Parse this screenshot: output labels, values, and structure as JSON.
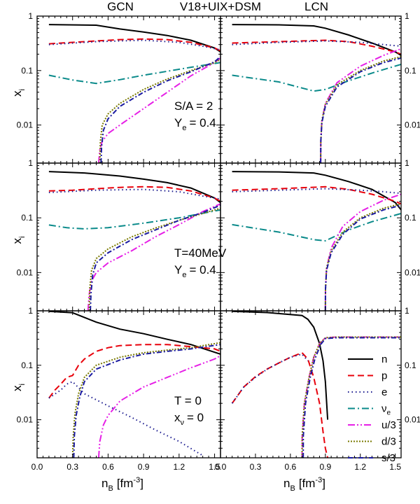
{
  "figure": {
    "header": {
      "left": "GCN",
      "center": "V18+UIX+DSM",
      "right": "LCN"
    },
    "y_label": "x",
    "y_label_sub": "i",
    "x_label": "n",
    "x_label_sub": "B",
    "x_label_unit": "[fm",
    "x_label_exp": "-3",
    "x_label_close": "]"
  },
  "legend": [
    {
      "label": "n",
      "color": "#000000",
      "dash": ""
    },
    {
      "label": "p",
      "color": "#e8000b",
      "dash": "9,5"
    },
    {
      "label": "e",
      "color": "#1b1b8f",
      "dash": "1.5,4"
    },
    {
      "label": "ν",
      "sub": "e",
      "color": "#0a8a8a",
      "dash": "10,4,2,4"
    },
    {
      "label": "u/3",
      "color": "#e620e6",
      "dash": "10,3,2,3,2,3"
    },
    {
      "label": "d/3",
      "color": "#7a7a00",
      "dash": "2,2"
    },
    {
      "label": "s/3",
      "color": "#1a1aa0",
      "dash": "7,3,2,3"
    }
  ],
  "chart_data": [
    {
      "type": "line",
      "panel": "S/A=2 GCN",
      "annotation": [
        "S/A = 2",
        "Y",
        "e",
        "= 0.4"
      ],
      "xlim": [
        0,
        1.55
      ],
      "ylim_log": [
        0.002,
        1
      ],
      "y_ticks": [
        "1",
        "0.1",
        "0.01"
      ],
      "x_ticks": [],
      "series": [
        {
          "name": "n",
          "x": [
            0.1,
            0.5,
            0.7,
            0.9,
            1.1,
            1.3,
            1.5,
            1.55
          ],
          "y": [
            0.7,
            0.68,
            0.58,
            0.51,
            0.44,
            0.36,
            0.26,
            0.22
          ]
        },
        {
          "name": "p",
          "x": [
            0.1,
            0.3,
            0.5,
            0.7,
            0.9,
            1.1,
            1.3,
            1.5,
            1.55
          ],
          "y": [
            0.31,
            0.33,
            0.35,
            0.37,
            0.38,
            0.37,
            0.33,
            0.26,
            0.23
          ]
        },
        {
          "name": "e",
          "x": [
            0.1,
            0.5,
            0.9,
            1.2,
            1.4,
            1.55
          ],
          "y": [
            0.3,
            0.34,
            0.36,
            0.33,
            0.28,
            0.24
          ]
        },
        {
          "name": "nu_e",
          "x": [
            0.1,
            0.3,
            0.5,
            0.7,
            0.9,
            1.1,
            1.3,
            1.55
          ],
          "y": [
            0.082,
            0.067,
            0.058,
            0.068,
            0.082,
            0.097,
            0.115,
            0.14
          ]
        },
        {
          "name": "u/3",
          "x": [
            0.52,
            0.53,
            0.55,
            0.6,
            0.7,
            0.9,
            1.1,
            1.3,
            1.5,
            1.55
          ],
          "y": [
            0.002,
            0.0035,
            0.005,
            0.007,
            0.01,
            0.02,
            0.04,
            0.08,
            0.14,
            0.17
          ]
        },
        {
          "name": "d/3",
          "x": [
            0.53,
            0.535,
            0.55,
            0.6,
            0.7,
            0.9,
            1.1,
            1.3,
            1.5,
            1.55
          ],
          "y": [
            0.002,
            0.005,
            0.01,
            0.016,
            0.025,
            0.045,
            0.07,
            0.1,
            0.14,
            0.16
          ]
        },
        {
          "name": "s/3",
          "x": [
            0.54,
            0.545,
            0.56,
            0.6,
            0.7,
            0.9,
            1.1,
            1.3,
            1.5,
            1.55
          ],
          "y": [
            0.002,
            0.004,
            0.008,
            0.013,
            0.022,
            0.04,
            0.065,
            0.095,
            0.145,
            0.18
          ]
        }
      ]
    },
    {
      "type": "line",
      "panel": "S/A=2 LCN",
      "xlim": [
        0,
        1.55
      ],
      "ylim_log": [
        0.002,
        1
      ],
      "y_ticks": [
        "1",
        "0.1",
        "0.01"
      ],
      "x_ticks": [],
      "series": [
        {
          "name": "n",
          "x": [
            0.1,
            0.5,
            0.8,
            0.9,
            1.1,
            1.3,
            1.5,
            1.55
          ],
          "y": [
            0.7,
            0.69,
            0.66,
            0.6,
            0.45,
            0.32,
            0.22,
            0.19
          ]
        },
        {
          "name": "p",
          "x": [
            0.1,
            0.5,
            0.9,
            1.1,
            1.3,
            1.5,
            1.55
          ],
          "y": [
            0.32,
            0.34,
            0.36,
            0.34,
            0.28,
            0.22,
            0.2
          ]
        },
        {
          "name": "e",
          "x": [
            0.1,
            0.5,
            0.9,
            1.2,
            1.4,
            1.55
          ],
          "y": [
            0.3,
            0.33,
            0.35,
            0.33,
            0.3,
            0.28
          ]
        },
        {
          "name": "nu_e",
          "x": [
            0.1,
            0.5,
            0.8,
            0.9,
            1.1,
            1.3,
            1.55
          ],
          "y": [
            0.082,
            0.062,
            0.042,
            0.045,
            0.065,
            0.09,
            0.13
          ]
        },
        {
          "name": "u/3",
          "x": [
            0.86,
            0.861,
            0.87,
            0.9,
            1.0,
            1.2,
            1.4,
            1.55
          ],
          "y": [
            0.002,
            0.005,
            0.012,
            0.025,
            0.06,
            0.12,
            0.19,
            0.25
          ]
        },
        {
          "name": "d/3",
          "x": [
            0.86,
            0.861,
            0.87,
            0.9,
            1.0,
            1.2,
            1.4,
            1.55
          ],
          "y": [
            0.002,
            0.005,
            0.012,
            0.024,
            0.055,
            0.1,
            0.15,
            0.18
          ]
        },
        {
          "name": "s/3",
          "x": [
            0.86,
            0.861,
            0.87,
            0.9,
            1.0,
            1.2,
            1.4,
            1.55
          ],
          "y": [
            0.002,
            0.005,
            0.011,
            0.022,
            0.05,
            0.095,
            0.14,
            0.17
          ]
        }
      ]
    },
    {
      "type": "line",
      "panel": "T=40MeV GCN",
      "annotation": [
        "T=40MeV",
        "Y",
        "e",
        "= 0.4"
      ],
      "xlim": [
        0,
        1.55
      ],
      "ylim_log": [
        0.002,
        1
      ],
      "y_ticks": [
        "1",
        "0.1",
        "0.01"
      ],
      "x_ticks": [],
      "series": [
        {
          "name": "n",
          "x": [
            0.1,
            0.4,
            0.7,
            0.9,
            1.1,
            1.3,
            1.5,
            1.55
          ],
          "y": [
            0.7,
            0.66,
            0.58,
            0.51,
            0.44,
            0.35,
            0.23,
            0.19
          ]
        },
        {
          "name": "p",
          "x": [
            0.1,
            0.3,
            0.5,
            0.7,
            0.9,
            1.1,
            1.3,
            1.5,
            1.55
          ],
          "y": [
            0.31,
            0.32,
            0.34,
            0.36,
            0.37,
            0.36,
            0.31,
            0.23,
            0.2
          ]
        },
        {
          "name": "e",
          "x": [
            0.1,
            0.5,
            0.9,
            1.2,
            1.4,
            1.55
          ],
          "y": [
            0.29,
            0.32,
            0.33,
            0.3,
            0.25,
            0.22
          ]
        },
        {
          "name": "nu_e",
          "x": [
            0.1,
            0.25,
            0.4,
            0.6,
            0.9,
            1.2,
            1.55
          ],
          "y": [
            0.074,
            0.066,
            0.063,
            0.066,
            0.08,
            0.1,
            0.14
          ]
        },
        {
          "name": "u/3",
          "x": [
            0.43,
            0.44,
            0.46,
            0.5,
            0.6,
            0.8,
            1.0,
            1.2,
            1.4,
            1.55
          ],
          "y": [
            0.002,
            0.004,
            0.007,
            0.01,
            0.015,
            0.025,
            0.045,
            0.075,
            0.13,
            0.18
          ]
        },
        {
          "name": "d/3",
          "x": [
            0.44,
            0.445,
            0.46,
            0.5,
            0.6,
            0.8,
            1.0,
            1.2,
            1.4,
            1.55
          ],
          "y": [
            0.002,
            0.005,
            0.011,
            0.018,
            0.027,
            0.045,
            0.065,
            0.09,
            0.12,
            0.15
          ]
        },
        {
          "name": "s/3",
          "x": [
            0.45,
            0.455,
            0.47,
            0.5,
            0.6,
            0.8,
            1.0,
            1.2,
            1.4,
            1.55
          ],
          "y": [
            0.002,
            0.004,
            0.009,
            0.015,
            0.023,
            0.04,
            0.06,
            0.09,
            0.125,
            0.17
          ]
        }
      ]
    },
    {
      "type": "line",
      "panel": "T=40MeV LCN",
      "xlim": [
        0,
        1.55
      ],
      "ylim_log": [
        0.002,
        1
      ],
      "y_ticks": [
        "1",
        "0.1",
        "0.01"
      ],
      "x_ticks": [],
      "series": [
        {
          "name": "n",
          "x": [
            0.1,
            0.5,
            0.8,
            0.9,
            1.1,
            1.3,
            1.5,
            1.55
          ],
          "y": [
            0.7,
            0.69,
            0.66,
            0.6,
            0.46,
            0.33,
            0.19,
            0.14
          ]
        },
        {
          "name": "p",
          "x": [
            0.1,
            0.5,
            0.9,
            1.1,
            1.3,
            1.5,
            1.55
          ],
          "y": [
            0.32,
            0.34,
            0.37,
            0.33,
            0.27,
            0.2,
            0.18
          ]
        },
        {
          "name": "e",
          "x": [
            0.1,
            0.5,
            0.9,
            1.2,
            1.4,
            1.55
          ],
          "y": [
            0.3,
            0.32,
            0.34,
            0.32,
            0.3,
            0.28
          ]
        },
        {
          "name": "nu_e",
          "x": [
            0.1,
            0.5,
            0.8,
            0.9,
            1.1,
            1.3,
            1.55
          ],
          "y": [
            0.075,
            0.055,
            0.04,
            0.038,
            0.06,
            0.085,
            0.12
          ]
        },
        {
          "name": "u/3",
          "x": [
            0.9,
            0.901,
            0.91,
            0.95,
            1.05,
            1.2,
            1.4,
            1.55
          ],
          "y": [
            0.002,
            0.005,
            0.012,
            0.028,
            0.07,
            0.13,
            0.21,
            0.27
          ]
        },
        {
          "name": "d/3",
          "x": [
            0.9,
            0.901,
            0.91,
            0.95,
            1.05,
            1.2,
            1.4,
            1.55
          ],
          "y": [
            0.002,
            0.005,
            0.012,
            0.025,
            0.055,
            0.1,
            0.15,
            0.18
          ]
        },
        {
          "name": "s/3",
          "x": [
            0.9,
            0.901,
            0.91,
            0.95,
            1.05,
            1.2,
            1.4,
            1.55
          ],
          "y": [
            0.002,
            0.005,
            0.011,
            0.023,
            0.05,
            0.095,
            0.14,
            0.17
          ]
        }
      ]
    },
    {
      "type": "line",
      "panel": "T=0 GCN",
      "annotation": [
        "T = 0",
        "x",
        "ν",
        "= 0"
      ],
      "xlim": [
        0,
        1.55
      ],
      "ylim_log": [
        0.002,
        1
      ],
      "y_ticks": [
        "1",
        "0.1",
        "0.01"
      ],
      "x_ticks": [
        "0.0",
        "0.3",
        "0.6",
        "0.9",
        "1.2",
        "1.5"
      ],
      "series": [
        {
          "name": "n",
          "x": [
            0.1,
            0.3,
            0.5,
            0.7,
            0.9,
            1.1,
            1.3,
            1.55
          ],
          "y": [
            0.98,
            0.92,
            0.62,
            0.46,
            0.38,
            0.3,
            0.24,
            0.16
          ]
        },
        {
          "name": "p",
          "x": [
            0.1,
            0.15,
            0.2,
            0.25,
            0.3,
            0.35,
            0.4,
            0.5,
            0.6,
            0.7,
            0.9,
            1.1,
            1.3,
            1.5,
            1.55
          ],
          "y": [
            0.025,
            0.035,
            0.045,
            0.06,
            0.065,
            0.1,
            0.13,
            0.18,
            0.21,
            0.23,
            0.24,
            0.24,
            0.22,
            0.2,
            0.18
          ]
        },
        {
          "name": "e",
          "x": [
            0.1,
            0.2,
            0.25,
            0.3,
            0.4,
            0.6,
            0.8,
            1.0,
            1.2,
            1.4
          ],
          "y": [
            0.025,
            0.035,
            0.045,
            0.05,
            0.03,
            0.018,
            0.011,
            0.0065,
            0.004,
            0.0022
          ]
        },
        {
          "name": "u/3",
          "x": [
            0.52,
            0.53,
            0.56,
            0.6,
            0.7,
            0.9,
            1.1,
            1.3,
            1.5,
            1.55
          ],
          "y": [
            0.002,
            0.004,
            0.008,
            0.012,
            0.022,
            0.04,
            0.06,
            0.09,
            0.13,
            0.15
          ]
        },
        {
          "name": "d/3",
          "x": [
            0.3,
            0.305,
            0.32,
            0.35,
            0.4,
            0.5,
            0.7,
            0.9,
            1.1,
            1.3,
            1.55
          ],
          "y": [
            0.002,
            0.005,
            0.013,
            0.03,
            0.06,
            0.1,
            0.14,
            0.17,
            0.19,
            0.21,
            0.26
          ]
        },
        {
          "name": "s/3",
          "x": [
            0.31,
            0.315,
            0.33,
            0.36,
            0.4,
            0.5,
            0.7,
            0.9,
            1.1,
            1.3,
            1.55
          ],
          "y": [
            0.002,
            0.005,
            0.012,
            0.026,
            0.05,
            0.085,
            0.125,
            0.16,
            0.18,
            0.2,
            0.24
          ]
        }
      ]
    },
    {
      "type": "line",
      "panel": "T=0 LCN",
      "xlim": [
        0,
        1.55
      ],
      "ylim_log": [
        0.002,
        1
      ],
      "y_ticks": [
        "1",
        "0.1",
        "0.01"
      ],
      "x_ticks": [
        "0.0",
        "0.3",
        "0.6",
        "0.9",
        "1.2",
        "1.5"
      ],
      "series": [
        {
          "name": "n",
          "x": [
            0.1,
            0.4,
            0.7,
            0.75,
            0.8,
            0.85,
            0.88,
            0.9,
            0.92
          ],
          "y": [
            0.98,
            0.93,
            0.82,
            0.7,
            0.5,
            0.25,
            0.12,
            0.05,
            0.01
          ]
        },
        {
          "name": "p",
          "x": [
            0.1,
            0.2,
            0.3,
            0.4,
            0.5,
            0.6,
            0.7,
            0.75,
            0.8,
            0.85,
            0.88,
            0.9,
            0.92
          ],
          "y": [
            0.02,
            0.04,
            0.062,
            0.085,
            0.11,
            0.14,
            0.17,
            0.13,
            0.06,
            0.02,
            0.006,
            0.003,
            0.002
          ]
        },
        {
          "name": "e",
          "x": [
            0.1,
            0.2,
            0.3,
            0.4,
            0.5,
            0.6,
            0.7,
            0.75
          ],
          "y": [
            0.02,
            0.04,
            0.06,
            0.085,
            0.11,
            0.14,
            0.16,
            0.12
          ]
        },
        {
          "name": "u/3",
          "x": [
            0.7,
            0.701,
            0.72,
            0.76,
            0.8,
            0.85,
            0.9,
            1.0,
            1.55
          ],
          "y": [
            0.002,
            0.005,
            0.02,
            0.06,
            0.14,
            0.25,
            0.32,
            0.33,
            0.33
          ]
        },
        {
          "name": "d/3",
          "x": [
            0.7,
            0.701,
            0.72,
            0.76,
            0.8,
            0.85,
            0.9,
            1.0,
            1.55
          ],
          "y": [
            0.002,
            0.005,
            0.02,
            0.06,
            0.14,
            0.25,
            0.32,
            0.33,
            0.33
          ]
        },
        {
          "name": "s/3",
          "x": [
            0.71,
            0.711,
            0.73,
            0.77,
            0.81,
            0.86,
            0.9,
            1.0,
            1.55
          ],
          "y": [
            0.002,
            0.005,
            0.02,
            0.06,
            0.13,
            0.24,
            0.31,
            0.32,
            0.32
          ]
        }
      ]
    }
  ]
}
